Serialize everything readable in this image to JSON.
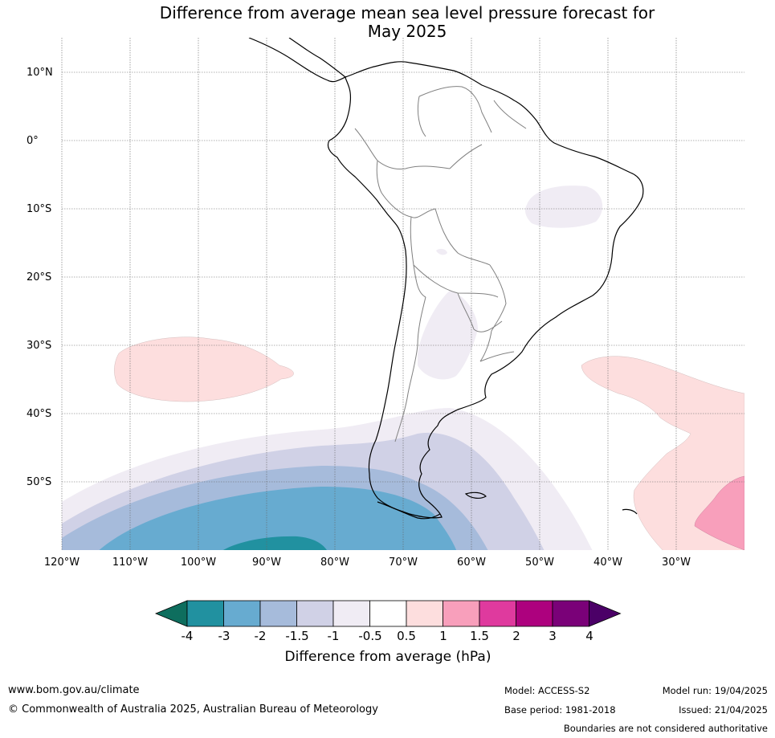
{
  "title_line1": "Difference from average mean sea level pressure forecast for",
  "title_line2": "May 2025",
  "lat_labels": [
    "10°N",
    "0°",
    "10°S",
    "20°S",
    "30°S",
    "40°S",
    "50°S"
  ],
  "lon_labels": [
    "120°W",
    "110°W",
    "100°W",
    "90°W",
    "80°W",
    "70°W",
    "60°W",
    "50°W",
    "40°W",
    "30°W"
  ],
  "colorbar": {
    "labels": [
      "-4",
      "-3",
      "-2",
      "-1.5",
      "-1",
      "-0.5",
      "0.5",
      "1",
      "1.5",
      "2",
      "3",
      "4"
    ],
    "colors": [
      "#0e6e5e",
      "#2191a0",
      "#67abd0",
      "#a6bbdb",
      "#d0d1e6",
      "#f0ecf4",
      "#ffffff",
      "#fddede",
      "#f89fbb",
      "#df3a9e",
      "#ad017e",
      "#7a0178",
      "#4b0067"
    ],
    "title": "Difference from average (hPa)"
  },
  "footer": {
    "url": "www.bom.gov.au/climate",
    "copyright": "© Commonwealth of Australia 2025, Australian Bureau of Meteorology",
    "model": "Model: ACCESS-S2",
    "base_period": "Base period: 1981-2018",
    "model_run": "Model run: 19/04/2025",
    "issued": "Issued: 21/04/2025",
    "disclaimer": "Boundaries are not considered authoritative"
  }
}
